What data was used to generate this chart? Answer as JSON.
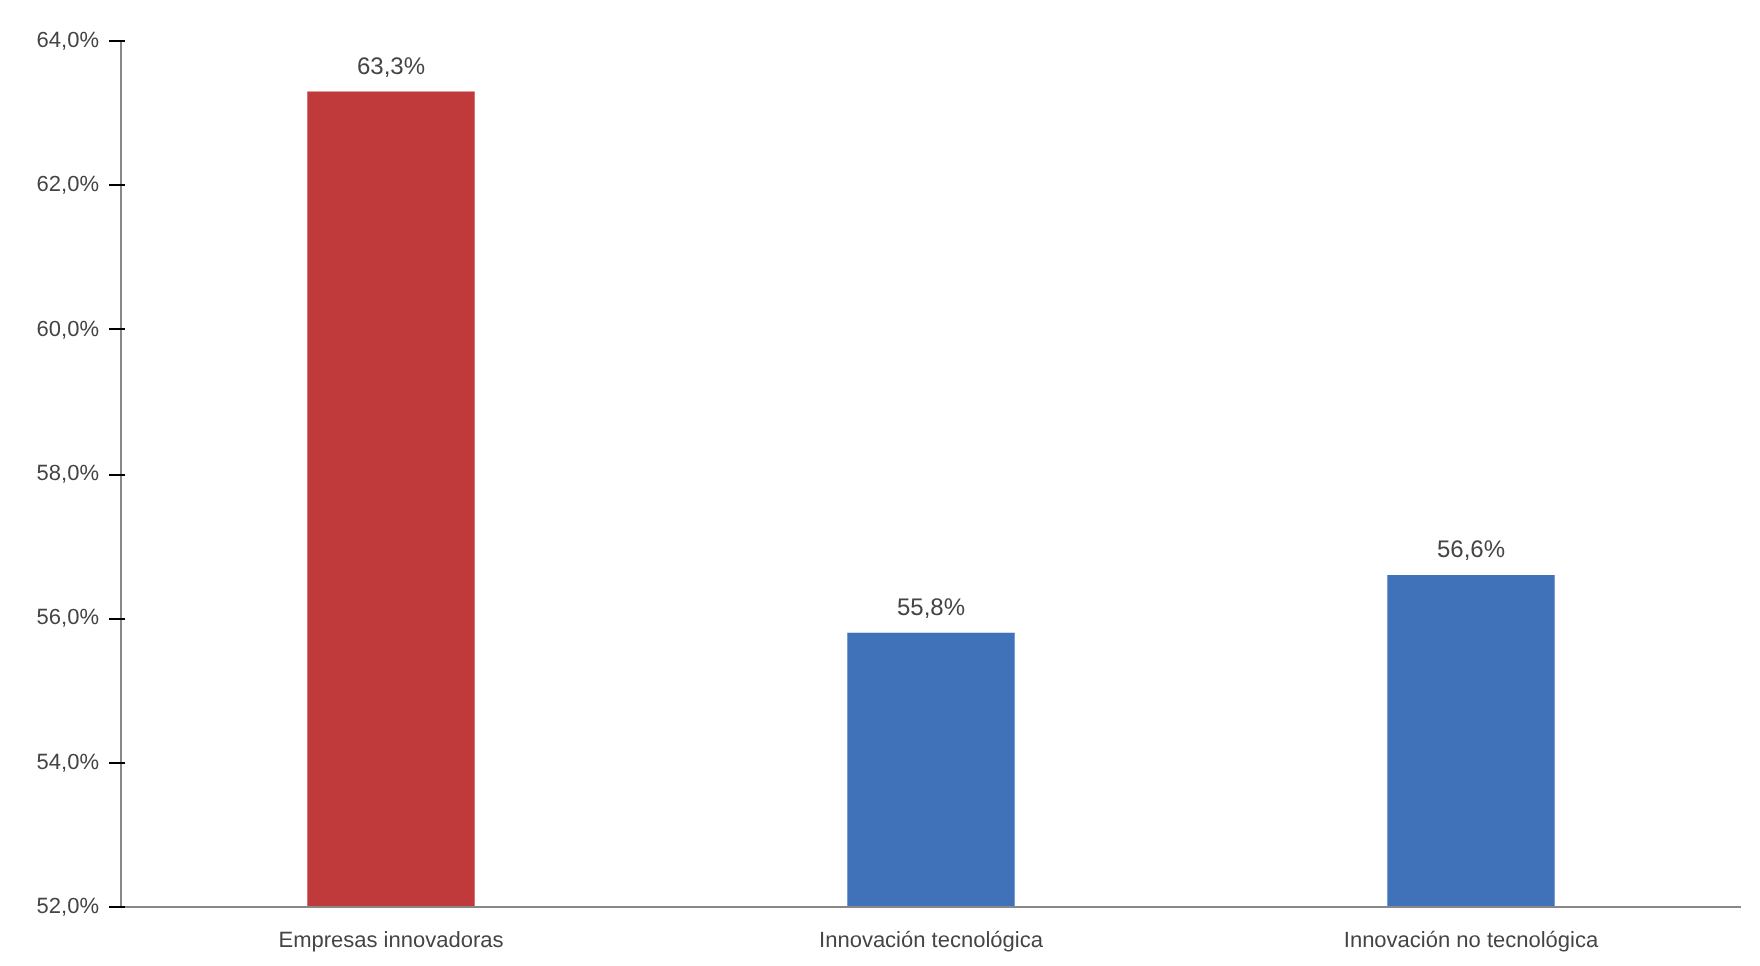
{
  "chart_data": {
    "type": "bar",
    "categories": [
      "Empresas innovadoras",
      "Innovación tecnológica",
      "Innovación no tecnológica"
    ],
    "values": [
      63.3,
      55.8,
      56.6
    ],
    "colors": [
      "#c0393b",
      "#3f72b9",
      "#3f72b9"
    ],
    "value_labels": [
      "63,3%",
      "55,8%",
      "56,6%"
    ],
    "ylim": [
      52,
      64
    ],
    "yticks": [
      {
        "value": 52,
        "label": "52,0%"
      },
      {
        "value": 54,
        "label": "54,0%"
      },
      {
        "value": 56,
        "label": "56,0%"
      },
      {
        "value": 58,
        "label": "58,0%"
      },
      {
        "value": 60,
        "label": "60,0%"
      },
      {
        "value": 62,
        "label": "62,0%"
      },
      {
        "value": 64,
        "label": "64,0%"
      }
    ],
    "grid": false
  }
}
